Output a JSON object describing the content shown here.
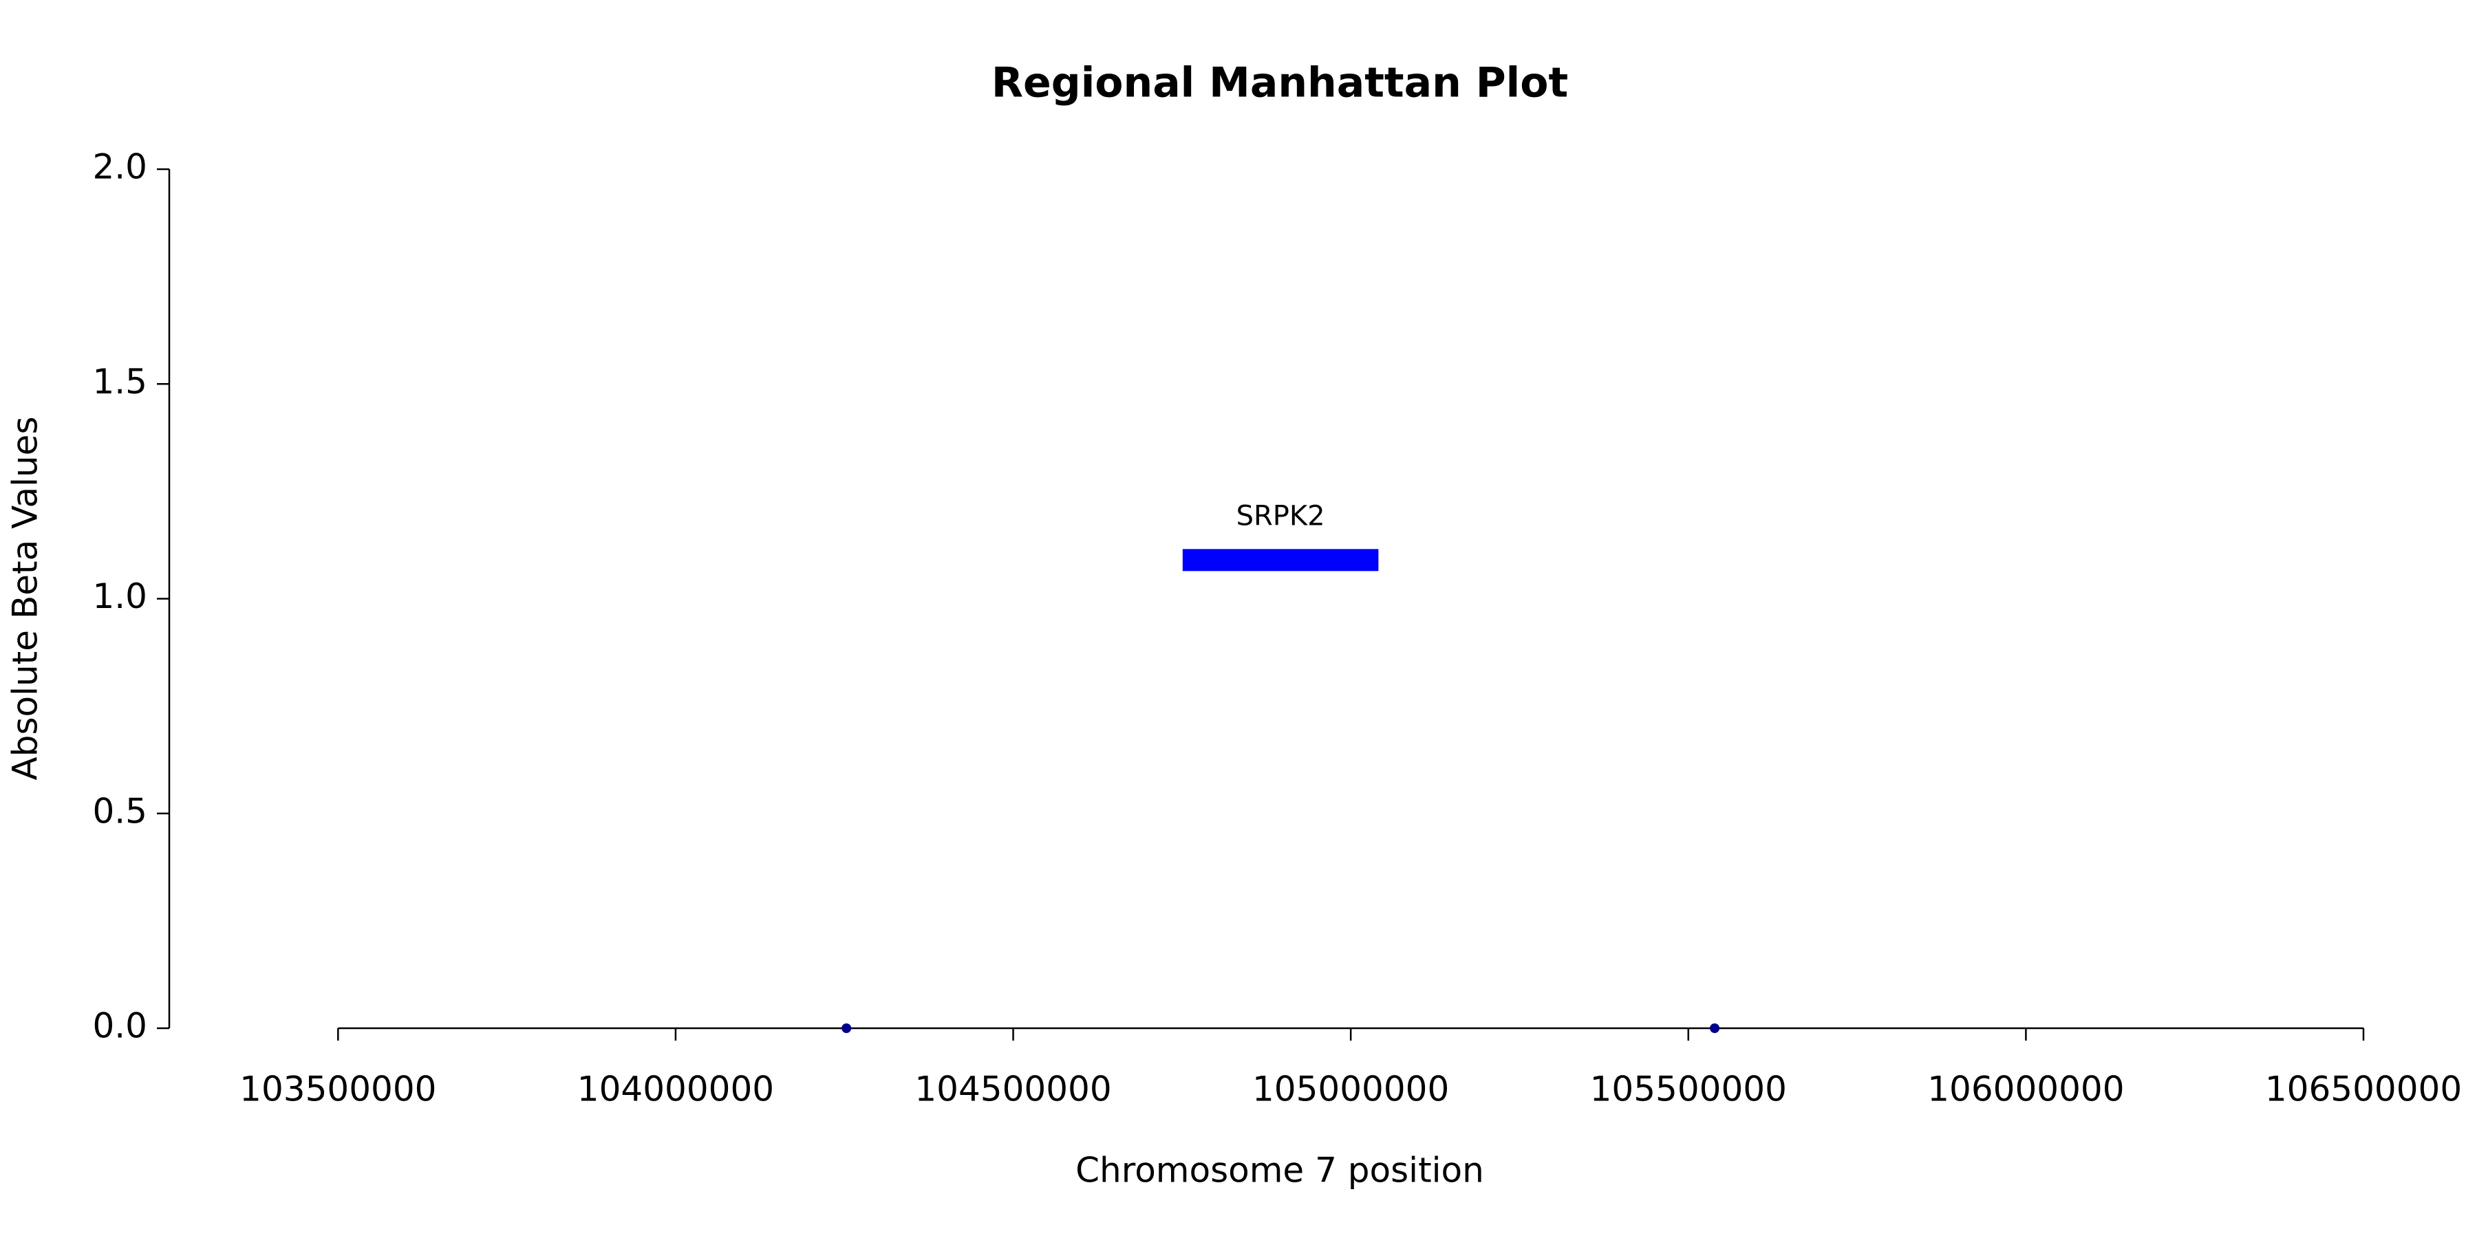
{
  "chart_data": {
    "type": "scatter",
    "title": "Regional Manhattan Plot",
    "xlabel": "Chromosome 7 position",
    "ylabel": "Absolute Beta Values",
    "series": [
      {
        "color": "#00008b",
        "x": [
          104253000,
          105539000
        ],
        "values": [
          0,
          0
        ]
      }
    ],
    "genes": [
      {
        "name": "SRPK2",
        "start": 104751000,
        "end": 105041000,
        "y": 1.09,
        "color": "#0000ff"
      }
    ],
    "xlim": [
      103250000,
      106500000
    ],
    "xticks": [
      103500000,
      104000000,
      104500000,
      105000000,
      105500000,
      106000000,
      106500000
    ],
    "ylim": [
      0,
      2.0
    ],
    "yticks": [
      {
        "value": 0,
        "label": "0.0"
      },
      0.5,
      {
        "value": 1,
        "label": "1.0"
      },
      1.5,
      {
        "value": 2,
        "label": "2.0"
      }
    ]
  }
}
